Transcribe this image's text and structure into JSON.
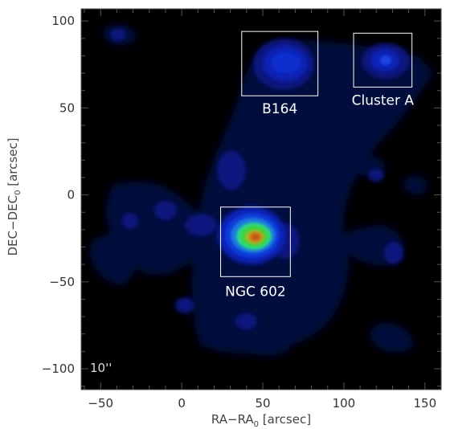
{
  "chart_data": {
    "type": "heatmap",
    "title": "",
    "xlabel": "RA−RA",
    "xlabel_sub": "0",
    "xlabel_unit": " [arcsec]",
    "ylabel": "DEC−DEC",
    "ylabel_sub": "0",
    "ylabel_unit": " [arcsec]",
    "xlim": [
      -62,
      160
    ],
    "ylim": [
      -112,
      107
    ],
    "xticks": [
      -50,
      0,
      50,
      100,
      150
    ],
    "xtick_labels": [
      "−50",
      "0",
      "50",
      "100",
      "150"
    ],
    "yticks": [
      -100,
      -50,
      0,
      50,
      100
    ],
    "ytick_labels": [
      "−100",
      "−50",
      "0",
      "50",
      "100"
    ],
    "grid": false,
    "background_color": "#000000",
    "beam_label": "10''",
    "regions": [
      {
        "label": "B164",
        "x_range": [
          37,
          84
        ],
        "y_range": [
          57,
          94
        ]
      },
      {
        "label": "Cluster A",
        "x_range": [
          106,
          142
        ],
        "y_range": [
          62,
          93
        ]
      },
      {
        "label": "NGC 602",
        "x_range": [
          24,
          67
        ],
        "y_range": [
          -47,
          -7
        ]
      }
    ],
    "emission_peaks": [
      {
        "x": 47,
        "y": -28,
        "peak": 1.0
      },
      {
        "x": 55,
        "y": 77,
        "peak": 0.45
      },
      {
        "x": 124,
        "y": 78,
        "peak": 0.38
      }
    ],
    "colormap": [
      "#000000",
      "#05083e",
      "#0a147e",
      "#0b22b8",
      "#0d3bd8",
      "#1a78e0",
      "#2bd88a",
      "#3cd33a",
      "#9fb82a",
      "#d8781a",
      "#c05a14"
    ]
  }
}
